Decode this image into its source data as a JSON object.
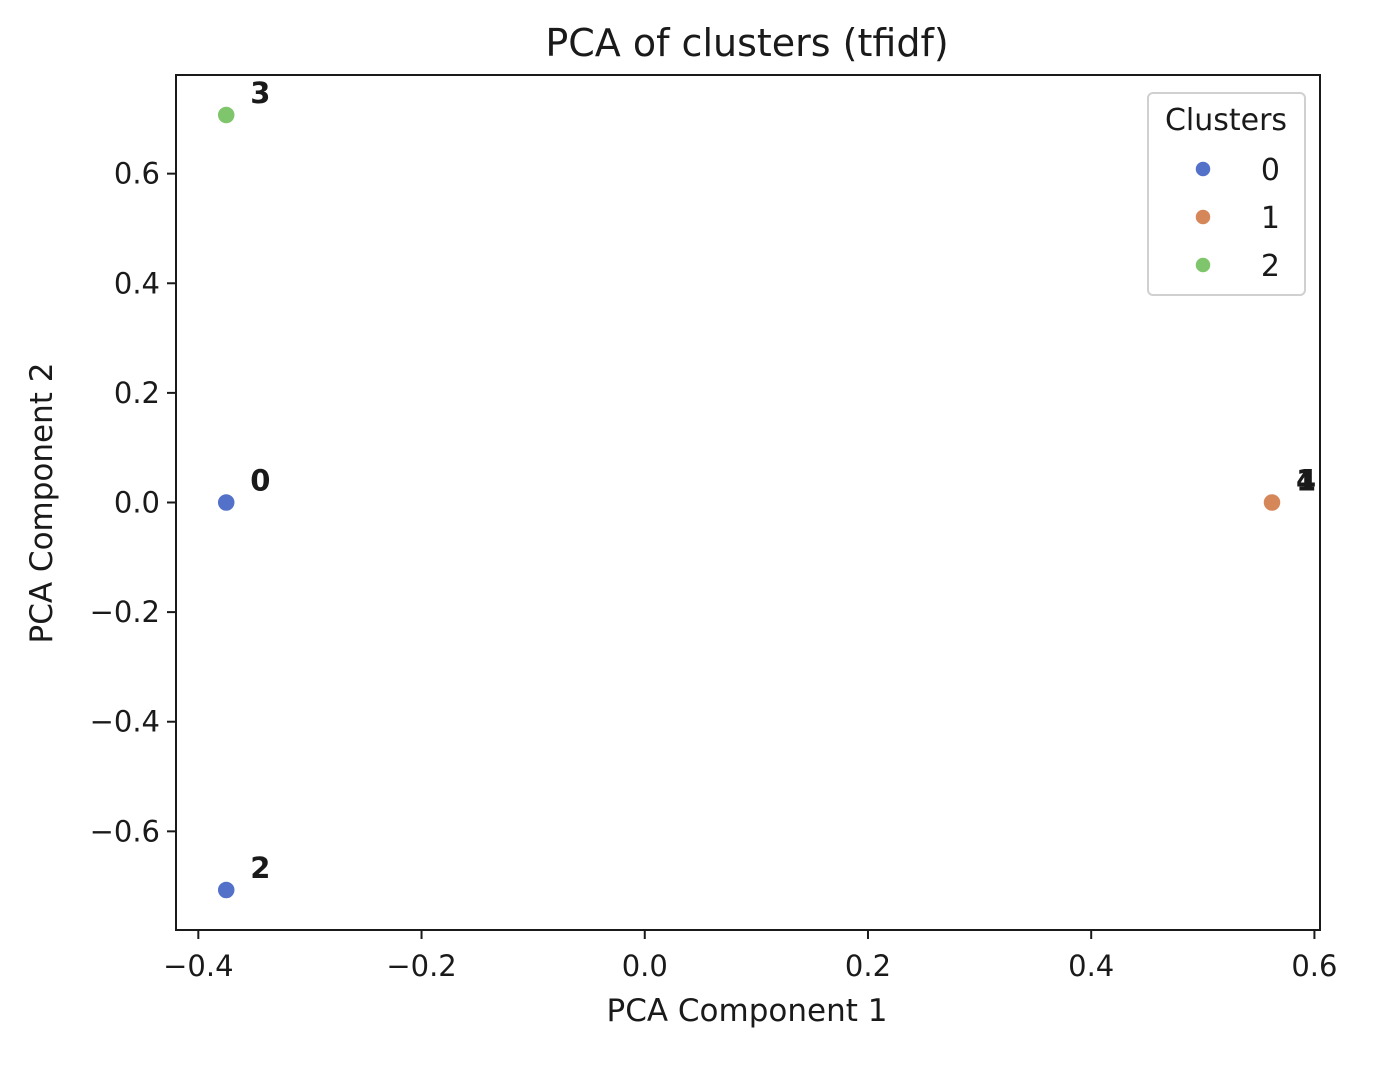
{
  "chart_data": {
    "type": "scatter",
    "title": "PCA of clusters (tfidf)",
    "xlabel": "PCA Component 1",
    "ylabel": "PCA Component 2",
    "xlim": [
      -0.42,
      0.605
    ],
    "ylim": [
      -0.78,
      0.78
    ],
    "xticks": [
      {
        "value": -0.4,
        "label": "−0.4"
      },
      {
        "value": -0.2,
        "label": "−0.2"
      },
      {
        "value": 0.0,
        "label": "0.0"
      },
      {
        "value": 0.2,
        "label": "0.2"
      },
      {
        "value": 0.4,
        "label": "0.4"
      },
      {
        "value": 0.6,
        "label": "0.6"
      }
    ],
    "yticks": [
      {
        "value": -0.6,
        "label": "−0.6"
      },
      {
        "value": -0.4,
        "label": "−0.4"
      },
      {
        "value": -0.2,
        "label": "−0.2"
      },
      {
        "value": 0.0,
        "label": "0.0"
      },
      {
        "value": 0.2,
        "label": "0.2"
      },
      {
        "value": 0.4,
        "label": "0.4"
      },
      {
        "value": 0.6,
        "label": "0.6"
      }
    ],
    "grid": false,
    "legend": {
      "title": "Clusters",
      "placement": "top-right",
      "entries": [
        {
          "label": "0",
          "color": "#5471c9"
        },
        {
          "label": "1",
          "color": "#d6875a"
        },
        {
          "label": "2",
          "color": "#7fc56b"
        }
      ]
    },
    "points": [
      {
        "x": -0.375,
        "y": 0.0,
        "cluster": "0",
        "label": "0"
      },
      {
        "x": -0.375,
        "y": -0.707,
        "cluster": "0",
        "label": "2"
      },
      {
        "x": -0.375,
        "y": 0.707,
        "cluster": "2",
        "label": "3"
      },
      {
        "x": 0.562,
        "y": 0.0,
        "cluster": "1",
        "label": "1"
      },
      {
        "x": 0.562,
        "y": 0.0,
        "cluster": "1",
        "label": "4"
      }
    ]
  }
}
